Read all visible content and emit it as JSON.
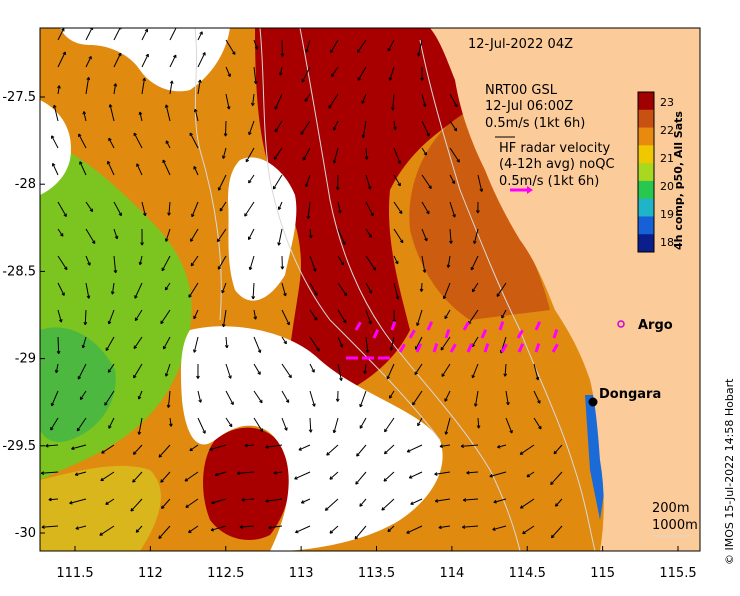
{
  "timestamp": "12-Jul-2022 04Z",
  "legend": {
    "model_line1": "NRT00 GSL",
    "model_line2": "12-Jul 06:00Z",
    "model_line3": "0.5m/s (1kt 6h)",
    "radar_line1": "HF radar velocity",
    "radar_line2": "(4-12h avg) noQC",
    "radar_line3": "0.5m/s (1kt 6h)"
  },
  "colorbar": {
    "title": "4h comp, p50, All Sats",
    "ticks": [
      "18",
      "19",
      "20",
      "21",
      "22",
      "23"
    ],
    "colors": [
      "#0a1e8c",
      "#1660d8",
      "#20b4c8",
      "#28c850",
      "#a8d820",
      "#f0c800",
      "#e88a10",
      "#c85010",
      "#a00000"
    ]
  },
  "places": {
    "argo": "Argo",
    "dongara": "Dongara"
  },
  "depth_legend": {
    "line1": "200m",
    "line2": "1000m"
  },
  "credit": "© IMOS 15-Jul-2022 14:58 Hobart",
  "axes": {
    "x_ticks": [
      "111.5",
      "112",
      "112.5",
      "113",
      "113.5",
      "114",
      "114.5",
      "115",
      "115.5"
    ],
    "y_ticks": [
      "-27.5",
      "-28",
      "-28.5",
      "-29",
      "-29.5",
      "-30"
    ]
  },
  "colors": {
    "land": "#fccb9a",
    "warm_core": "#a80000",
    "warm_mid": "#c8500c",
    "warm_orange": "#e08a10",
    "cool_green": "#70c020",
    "radar_vector": "#ff00ff"
  }
}
